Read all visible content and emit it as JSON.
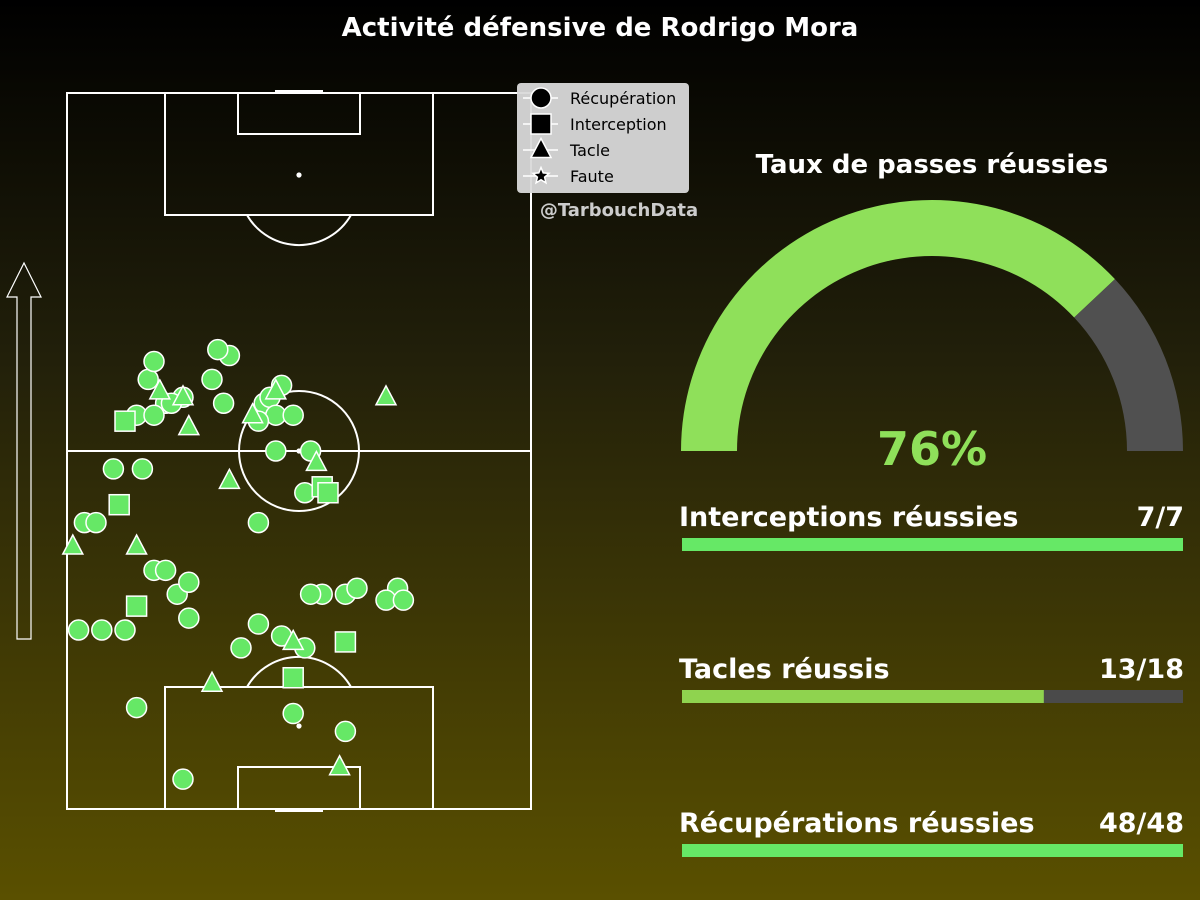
{
  "title": "Activité défensive de Rodrigo Mora",
  "watermark": "@TarbouchData",
  "legend": [
    {
      "label": "Récupération",
      "marker": "circle"
    },
    {
      "label": "Interception",
      "marker": "square"
    },
    {
      "label": "Tacle",
      "marker": "triangle"
    },
    {
      "label": "Faute",
      "marker": "star"
    }
  ],
  "gauge": {
    "title": "Taux de passes réussies",
    "value": 76,
    "label": "76%",
    "fill_color": "#8fe05a",
    "rest_color": "#505050"
  },
  "stats": [
    {
      "label": "Interceptions réussies",
      "value": "7/7",
      "fraction": 1.0,
      "color": "#66e866"
    },
    {
      "label": "Tacles réussis",
      "value": "13/18",
      "fraction": 0.7222,
      "color": "#8fd34f"
    },
    {
      "label": "Récupérations réussies",
      "value": "48/48",
      "fraction": 1.0,
      "color": "#66e866"
    }
  ],
  "colors": {
    "marker": "#66e866",
    "pitch_lines": "#ffffff",
    "legend_bg": "#d9d9d9",
    "track": "#4a4a4a"
  },
  "chart_data": {
    "type": "scatter",
    "pitch": {
      "length": 120,
      "width": 80,
      "orientation": "vertical",
      "attack_direction": "up"
    },
    "series": [
      {
        "name": "Récupération",
        "marker": "circle",
        "points": [
          [
            76,
            28
          ],
          [
            77,
            26
          ],
          [
            72,
            25
          ],
          [
            72,
            14
          ],
          [
            75,
            15
          ],
          [
            68,
            17
          ],
          [
            69,
            20
          ],
          [
            68,
            18
          ],
          [
            66,
            12
          ],
          [
            66,
            15
          ],
          [
            68,
            27
          ],
          [
            68,
            34
          ],
          [
            69,
            35
          ],
          [
            66,
            36
          ],
          [
            71,
            37
          ],
          [
            66,
            39
          ],
          [
            65,
            33
          ],
          [
            57,
            8
          ],
          [
            57,
            13
          ],
          [
            53,
            41
          ],
          [
            60,
            42
          ],
          [
            60,
            36
          ],
          [
            48,
            3
          ],
          [
            48,
            5
          ],
          [
            48,
            33
          ],
          [
            40,
            15
          ],
          [
            40,
            17
          ],
          [
            36,
            19
          ],
          [
            38,
            21
          ],
          [
            36,
            44
          ],
          [
            36,
            42
          ],
          [
            36,
            48
          ],
          [
            37,
            50
          ],
          [
            37,
            57
          ],
          [
            35,
            55
          ],
          [
            35,
            58
          ],
          [
            30,
            2
          ],
          [
            30,
            6
          ],
          [
            30,
            10
          ],
          [
            32,
            21
          ],
          [
            31,
            33
          ],
          [
            29,
            37
          ],
          [
            27,
            30
          ],
          [
            27,
            41
          ],
          [
            17,
            12
          ],
          [
            16,
            39
          ],
          [
            13,
            48
          ],
          [
            5,
            20
          ]
        ]
      },
      {
        "name": "Interception",
        "marker": "square",
        "points": [
          [
            65,
            10
          ],
          [
            51,
            9
          ],
          [
            54,
            44
          ],
          [
            53,
            45
          ],
          [
            34,
            12
          ],
          [
            28,
            48
          ],
          [
            22,
            39
          ]
        ]
      },
      {
        "name": "Tacle",
        "marker": "triangle",
        "points": [
          [
            70,
            16
          ],
          [
            69,
            20
          ],
          [
            70,
            36
          ],
          [
            66,
            32
          ],
          [
            69,
            55
          ],
          [
            64,
            21
          ],
          [
            55,
            28
          ],
          [
            58,
            43
          ],
          [
            44,
            12
          ],
          [
            44,
            1
          ],
          [
            21,
            25
          ],
          [
            28,
            39
          ],
          [
            7,
            47
          ]
        ]
      },
      {
        "name": "Faute",
        "marker": "star",
        "points": []
      }
    ]
  }
}
